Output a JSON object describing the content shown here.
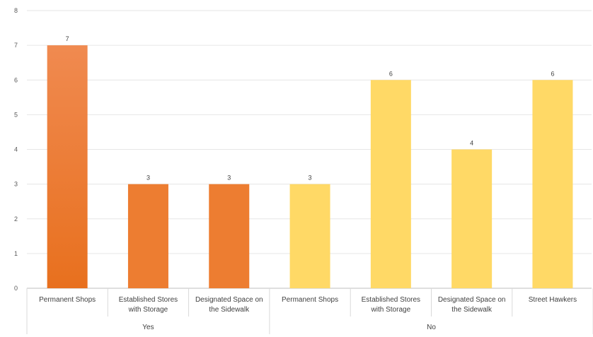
{
  "chart_data": {
    "type": "bar",
    "title": "",
    "xlabel": "",
    "ylabel": "",
    "ylim": [
      0,
      8
    ],
    "yticks": [
      0,
      1,
      2,
      3,
      4,
      5,
      6,
      7,
      8
    ],
    "grid": true,
    "groups": [
      {
        "label": "Yes",
        "color": "#ED7D31",
        "bars": [
          {
            "category": [
              "Permanent Shops"
            ],
            "value": 7
          },
          {
            "category": [
              "Established Stores",
              "with Storage"
            ],
            "value": 3
          },
          {
            "category": [
              "Designated Space on",
              "the Sidewalk"
            ],
            "value": 3
          }
        ]
      },
      {
        "label": "No",
        "color": "#FFD966",
        "bars": [
          {
            "category": [
              "Permanent Shops"
            ],
            "value": 3
          },
          {
            "category": [
              "Established Stores",
              "with Storage"
            ],
            "value": 6
          },
          {
            "category": [
              "Designated Space on",
              "the Sidewalk"
            ],
            "value": 4
          },
          {
            "category": [
              "Street Hawkers"
            ],
            "value": 6
          }
        ]
      }
    ]
  }
}
